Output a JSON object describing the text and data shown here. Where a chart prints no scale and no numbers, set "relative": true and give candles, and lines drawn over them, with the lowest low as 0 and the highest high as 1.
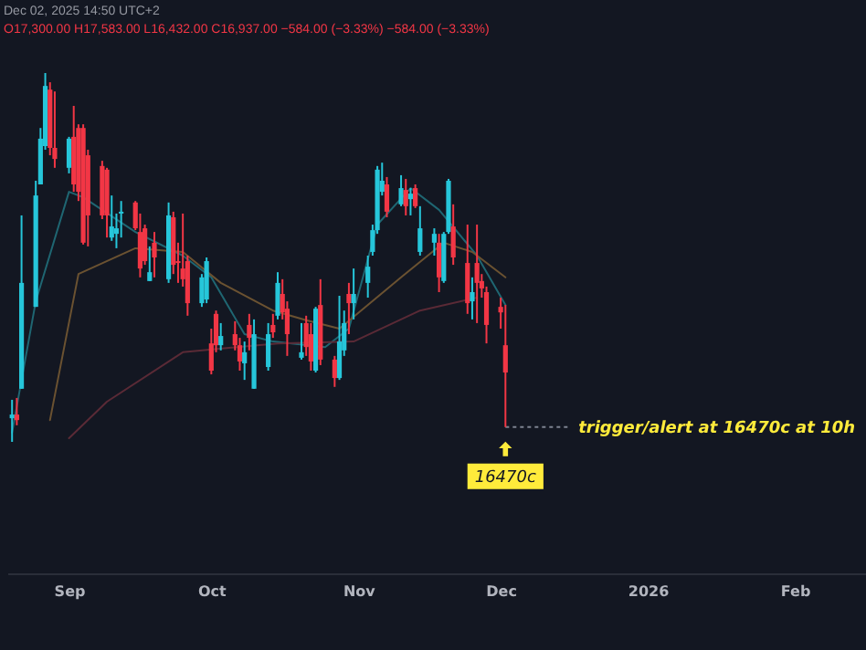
{
  "chart_data": {
    "type": "candlestick",
    "relative": true,
    "x": [
      "2025-08-20",
      "2025-08-21",
      "2025-08-22",
      "2025-08-25",
      "2025-08-26",
      "2025-08-27",
      "2025-08-28",
      "2025-08-29",
      "2025-09-01",
      "2025-09-02",
      "2025-09-03",
      "2025-09-04",
      "2025-09-05",
      "2025-09-08",
      "2025-09-09",
      "2025-09-10",
      "2025-09-11",
      "2025-09-12",
      "2025-09-15",
      "2025-09-16",
      "2025-09-17",
      "2025-09-18",
      "2025-09-19",
      "2025-09-22",
      "2025-09-23",
      "2025-09-24",
      "2025-09-25",
      "2025-09-26",
      "2025-09-29",
      "2025-09-30",
      "2025-10-01",
      "2025-10-02",
      "2025-10-03",
      "2025-10-06",
      "2025-10-07",
      "2025-10-08",
      "2025-10-09",
      "2025-10-10",
      "2025-10-13",
      "2025-10-14",
      "2025-10-15",
      "2025-10-16",
      "2025-10-17",
      "2025-10-20",
      "2025-10-21",
      "2025-10-22",
      "2025-10-23",
      "2025-10-24",
      "2025-10-27",
      "2025-10-28",
      "2025-10-29",
      "2025-10-30",
      "2025-10-31",
      "2025-11-03",
      "2025-11-04",
      "2025-11-05",
      "2025-11-06",
      "2025-11-07",
      "2025-11-10",
      "2025-11-11",
      "2025-11-12",
      "2025-11-13",
      "2025-11-14",
      "2025-11-17",
      "2025-11-18",
      "2025-11-19",
      "2025-11-20",
      "2025-11-21",
      "2025-11-24",
      "2025-11-25",
      "2025-11-26",
      "2025-11-27",
      "2025-11-28",
      "2025-12-01",
      "2025-12-02"
    ],
    "ohlc": [
      [
        0.064,
        0.114,
        0,
        0.074
      ],
      [
        0.074,
        0.119,
        0.045,
        0.059
      ],
      [
        0.144,
        0.614,
        0.144,
        0.431
      ],
      [
        0.366,
        0.708,
        0.366,
        0.668
      ],
      [
        0.698,
        0.851,
        0.698,
        0.822
      ],
      [
        0.802,
        1,
        0.792,
        0.965
      ],
      [
        0.955,
        0.975,
        0.777,
        0.797
      ],
      [
        0.797,
        0.95,
        0.743,
        0.767
      ],
      [
        0.743,
        0.827,
        0.728,
        0.822
      ],
      [
        0.827,
        0.911,
        0.678,
        0.698
      ],
      [
        0.851,
        0.861,
        0.653,
        0.678
      ],
      [
        0.851,
        0.861,
        0.535,
        0.54
      ],
      [
        0.777,
        0.792,
        0.53,
        0.614
      ],
      [
        0.748,
        0.762,
        0.604,
        0.614
      ],
      [
        0.738,
        0.743,
        0.554,
        0.614
      ],
      [
        0.554,
        0.668,
        0.545,
        0.584
      ],
      [
        0.564,
        0.619,
        0.525,
        0.579
      ],
      [
        0.619,
        0.653,
        0.554,
        0.624
      ],
      [
        0.649,
        0.653,
        0.574,
        0.579
      ],
      [
        0.569,
        0.619,
        0.446,
        0.47
      ],
      [
        0.579,
        0.589,
        0.48,
        0.49
      ],
      [
        0.436,
        0.53,
        0.436,
        0.46
      ],
      [
        0.54,
        0.569,
        0.446,
        0.5
      ],
      [
        0.441,
        0.649,
        0.431,
        0.614
      ],
      [
        0.609,
        0.624,
        0.455,
        0.48
      ],
      [
        0.49,
        0.54,
        0.431,
        0.485
      ],
      [
        0.47,
        0.619,
        0.421,
        0.441
      ],
      [
        0.49,
        0.505,
        0.342,
        0.376
      ],
      [
        0.376,
        0.455,
        0.366,
        0.446
      ],
      [
        0.386,
        0.5,
        0.376,
        0.49
      ],
      [
        0.267,
        0.307,
        0.183,
        0.193
      ],
      [
        0.347,
        0.356,
        0.243,
        0.262
      ],
      [
        0.262,
        0.322,
        0.248,
        0.287
      ],
      [
        0.292,
        0.327,
        0.248,
        0.262
      ],
      [
        0.262,
        0.282,
        0.193,
        0.218
      ],
      [
        0.213,
        0.272,
        0.168,
        0.243
      ],
      [
        0.317,
        0.347,
        0.248,
        0.282
      ],
      [
        0.144,
        0.332,
        0.144,
        0.292
      ],
      [
        0.203,
        0.322,
        0.193,
        0.292
      ],
      [
        0.317,
        0.347,
        0.282,
        0.297
      ],
      [
        0.342,
        0.46,
        0.332,
        0.431
      ],
      [
        0.401,
        0.441,
        0.332,
        0.351
      ],
      [
        0.361,
        0.381,
        0.233,
        0.292
      ],
      [
        0.228,
        0.322,
        0.223,
        0.243
      ],
      [
        0.322,
        0.342,
        0.233,
        0.257
      ],
      [
        0.292,
        0.322,
        0.193,
        0.218
      ],
      [
        0.193,
        0.366,
        0.188,
        0.361
      ],
      [
        0.371,
        0.441,
        0.208,
        0.223
      ],
      [
        0.223,
        0.233,
        0.149,
        0.173
      ],
      [
        0.173,
        0.396,
        0.168,
        0.272
      ],
      [
        0.248,
        0.356,
        0.233,
        0.322
      ],
      [
        0.401,
        0.431,
        0.292,
        0.376
      ],
      [
        0.376,
        0.47,
        0.332,
        0.401
      ],
      [
        0.431,
        0.505,
        0.391,
        0.475
      ],
      [
        0.515,
        0.589,
        0.505,
        0.574
      ],
      [
        0.574,
        0.748,
        0.564,
        0.738
      ],
      [
        0.678,
        0.757,
        0.668,
        0.708
      ],
      [
        0.698,
        0.718,
        0.609,
        0.624
      ],
      [
        0.644,
        0.723,
        0.639,
        0.688
      ],
      [
        0.683,
        0.713,
        0.614,
        0.639
      ],
      [
        0.658,
        0.688,
        0.614,
        0.673
      ],
      [
        0.688,
        0.698,
        0.634,
        0.639
      ],
      [
        0.515,
        0.639,
        0.505,
        0.579
      ],
      [
        0.54,
        0.579,
        0.505,
        0.564
      ],
      [
        0.54,
        0.564,
        0.406,
        0.446
      ],
      [
        0.436,
        0.569,
        0.431,
        0.564
      ],
      [
        0.569,
        0.713,
        0.564,
        0.708
      ],
      [
        0.584,
        0.644,
        0.48,
        0.5
      ],
      [
        0.485,
        0.589,
        0.347,
        0.376
      ],
      [
        0.381,
        0.446,
        0.332,
        0.406
      ],
      [
        0.485,
        0.589,
        0.322,
        0.431
      ],
      [
        0.436,
        0.455,
        0.391,
        0.416
      ],
      [
        0.406,
        0.421,
        0.267,
        0.317
      ],
      [
        0.366,
        0.391,
        0.307,
        0.351
      ],
      [
        0.262,
        0.371,
        0.04,
        0.188
      ]
    ],
    "colors": [
      "#26c6da",
      "#f23645",
      "#26c6da",
      "#26c6da",
      "#26c6da",
      "#26c6da",
      "#f23645",
      "#f23645",
      "#26c6da",
      "#f23645",
      "#f23645",
      "#f23645",
      "#f23645",
      "#f23645",
      "#f23645",
      "#26c6da",
      "#26c6da",
      "#26c6da",
      "#f23645",
      "#f23645",
      "#f23645",
      "#26c6da",
      "#f23645",
      "#26c6da",
      "#f23645",
      "#f23645",
      "#f23645",
      "#f23645",
      "#26c6da",
      "#26c6da",
      "#f23645",
      "#f23645",
      "#26c6da",
      "#f23645",
      "#f23645",
      "#26c6da",
      "#f23645",
      "#26c6da",
      "#26c6da",
      "#f23645",
      "#26c6da",
      "#f23645",
      "#f23645",
      "#26c6da",
      "#f23645",
      "#f23645",
      "#26c6da",
      "#f23645",
      "#f23645",
      "#26c6da",
      "#26c6da",
      "#f23645",
      "#26c6da",
      "#26c6da",
      "#26c6da",
      "#26c6da",
      "#26c6da",
      "#f23645",
      "#26c6da",
      "#f23645",
      "#26c6da",
      "#f23645",
      "#26c6da",
      "#26c6da",
      "#f23645",
      "#26c6da",
      "#26c6da",
      "#f23645",
      "#f23645",
      "#26c6da",
      "#f23645",
      "#f23645",
      "#f23645",
      "#f23645",
      "#f23645"
    ],
    "series": [
      {
        "type": "line",
        "color": "#1f6672",
        "x": [
          "2025-08-20",
          "2025-08-25",
          "2025-09-01",
          "2025-09-04",
          "2025-09-15",
          "2025-09-25",
          "2025-10-01",
          "2025-10-08",
          "2025-10-14",
          "2025-10-25",
          "2025-10-30",
          "2025-11-05",
          "2025-11-12",
          "2025-11-18",
          "2025-11-26",
          "2025-12-02"
        ],
        "values": [
          0.025,
          0.381,
          0.678,
          0.663,
          0.569,
          0.505,
          0.446,
          0.292,
          0.272,
          0.257,
          0.307,
          0.589,
          0.688,
          0.629,
          0.505,
          0.371
        ]
      },
      {
        "type": "line",
        "color": "#6b5231",
        "x": [
          "2025-08-28",
          "2025-09-03",
          "2025-09-15",
          "2025-09-25",
          "2025-10-03",
          "2025-10-14",
          "2025-10-21",
          "2025-10-28",
          "2025-11-10",
          "2025-11-19",
          "2025-11-25",
          "2025-12-02"
        ],
        "values": [
          0.059,
          0.455,
          0.525,
          0.515,
          0.431,
          0.356,
          0.33,
          0.307,
          0.446,
          0.54,
          0.515,
          0.446
        ]
      },
      {
        "type": "line",
        "color": "#5a2a36",
        "x": [
          "2025-09-01",
          "2025-09-09",
          "2025-09-25",
          "2025-10-15",
          "2025-10-31",
          "2025-11-14",
          "2025-11-26"
        ],
        "values": [
          0.01,
          0.109,
          0.243,
          0.267,
          0.272,
          0.356,
          0.391
        ]
      }
    ],
    "xlim": [
      "2025-08-19",
      "2026-02-16"
    ],
    "xticks": [
      {
        "value": "2025-09-01",
        "label": "Sep"
      },
      {
        "value": "2025-10-01",
        "label": "Oct"
      },
      {
        "value": "2025-11-01",
        "label": "Nov"
      },
      {
        "value": "2025-12-01",
        "label": "Dec"
      },
      {
        "value": "2026-01-01",
        "label": "2026"
      },
      {
        "value": "2026-02-01",
        "label": "Feb"
      }
    ],
    "ref_lines": [
      {
        "axis": "y",
        "value": 0.04,
        "label": "trigger/alert at 16470c at 10h",
        "line_style": "dotted",
        "color": "#7d8290"
      }
    ],
    "annotations": [
      "Dec 02, 2025 14:50 UTC+2",
      "O17,300.00 H17,583.00 L16,432.00 C16,937.00 −584.00 (−3.33%) −584.00 (−3.33%)",
      {
        "text": "16470c",
        "x": "2025-12-02",
        "y": 0.04
      }
    ]
  }
}
